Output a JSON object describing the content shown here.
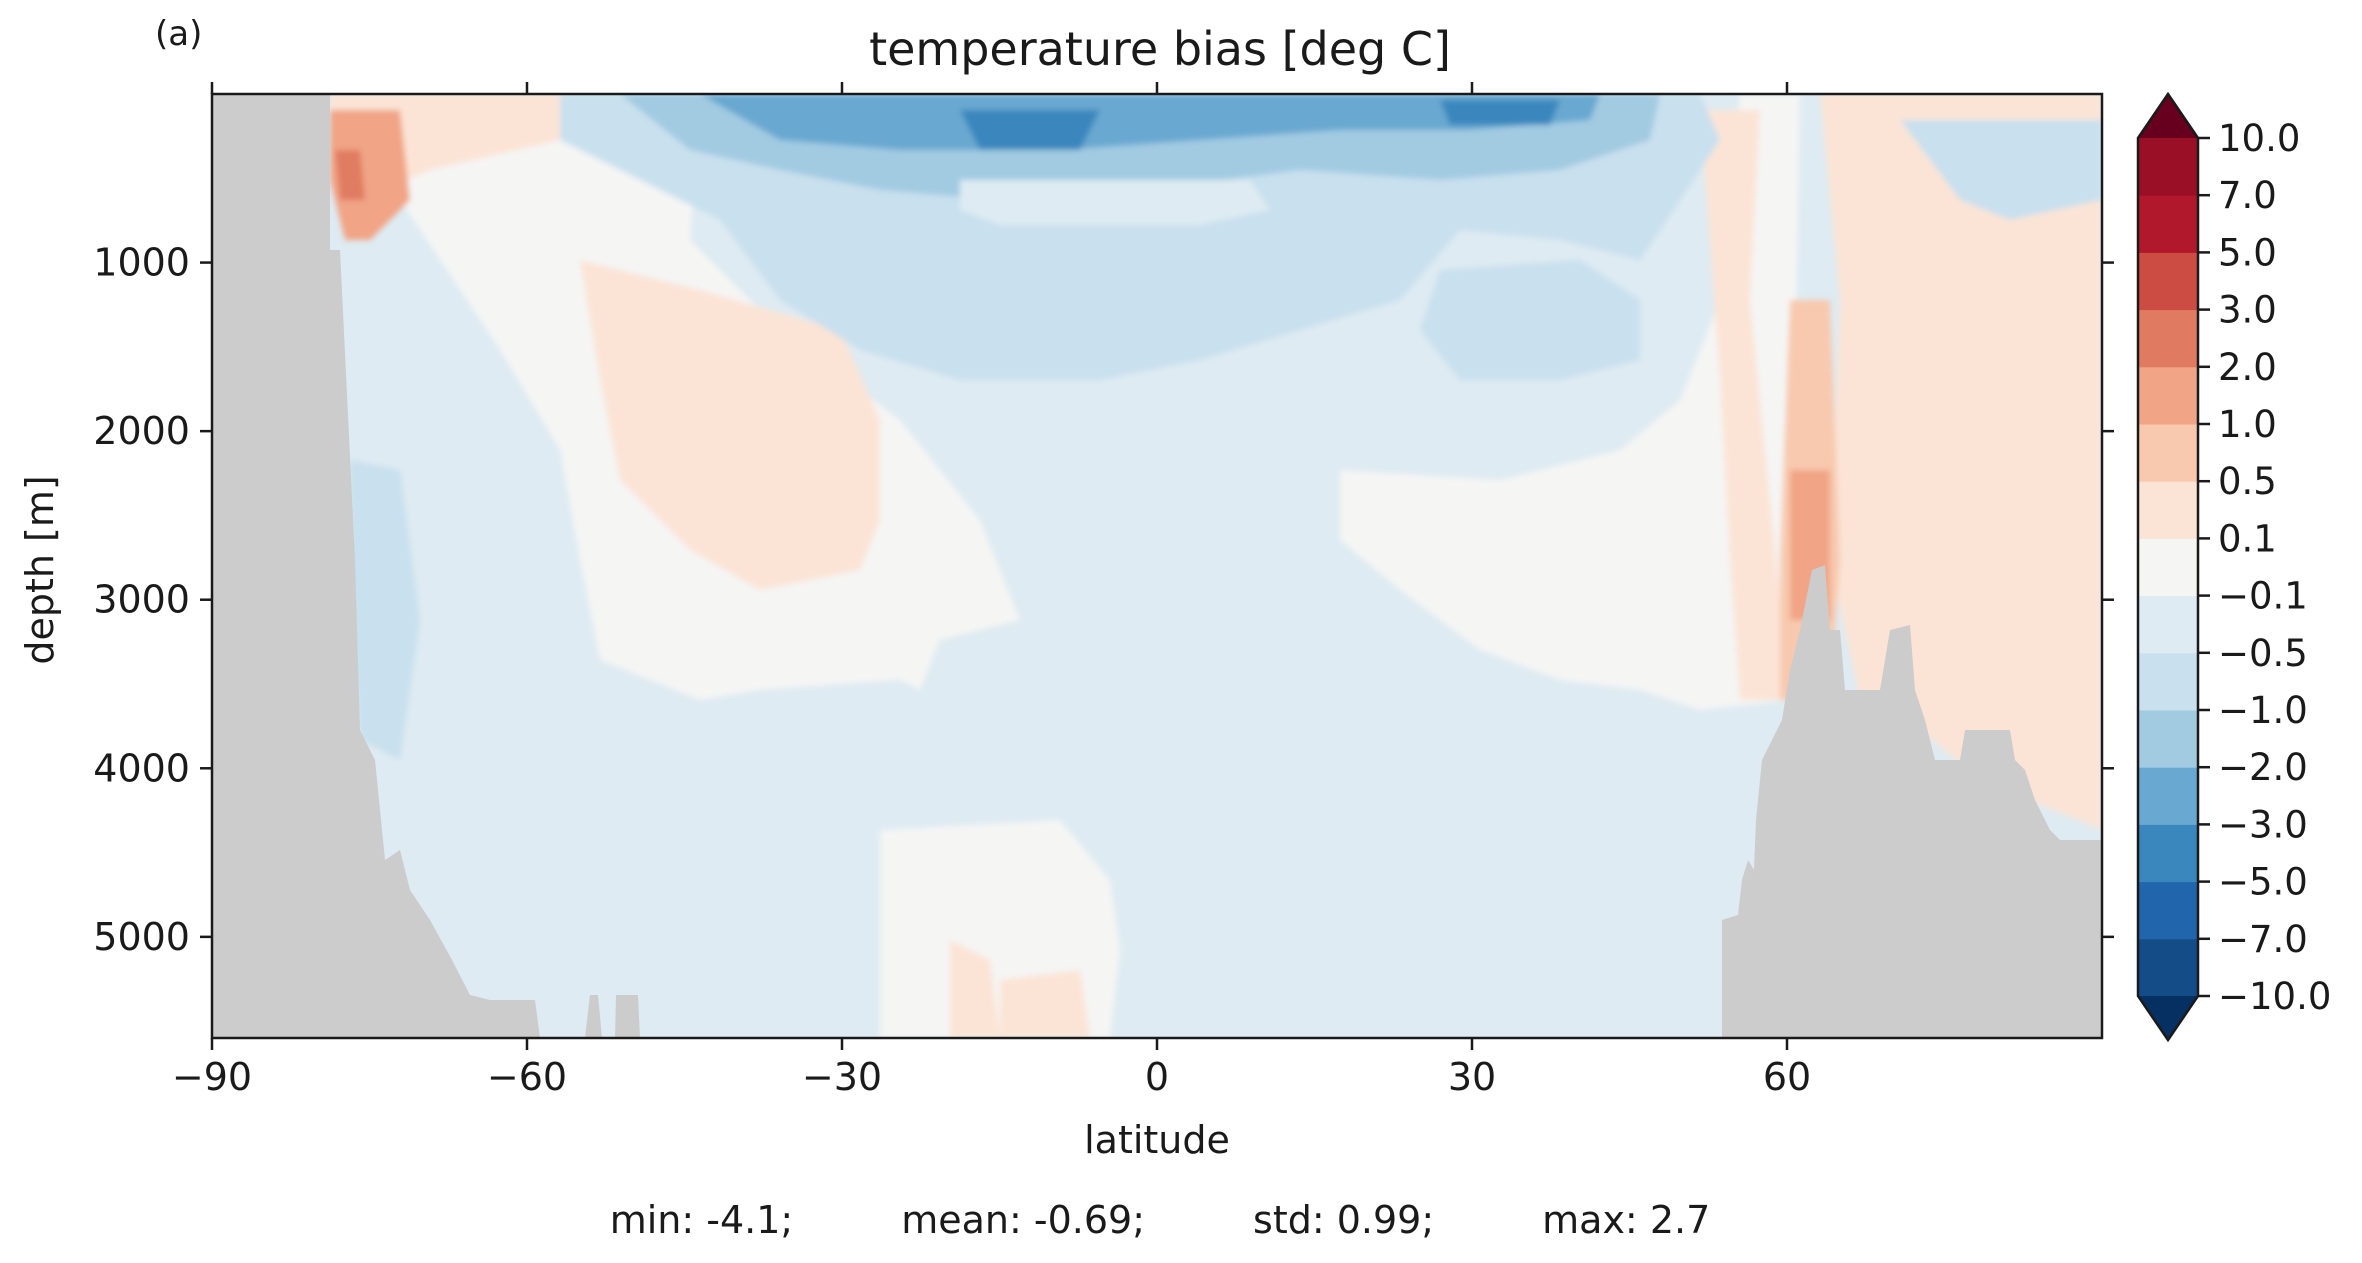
{
  "panel_label": "(a)",
  "chart_data": {
    "type": "heatmap",
    "title": "temperature bias [deg C]",
    "xlabel": "latitude",
    "ylabel": "depth [m]",
    "xlim": [
      -90,
      90
    ],
    "ylim": [
      5600,
      0
    ],
    "x_ticks": [
      -90,
      -60,
      -30,
      0,
      30,
      60
    ],
    "x_tick_labels": [
      "−90",
      "−60",
      "−30",
      "0",
      "30",
      "60"
    ],
    "y_ticks": [
      1000,
      2000,
      3000,
      4000,
      5000
    ],
    "y_tick_labels": [
      "1000",
      "2000",
      "3000",
      "4000",
      "5000"
    ],
    "colorbar": {
      "extend": "both",
      "levels": [
        -10.0,
        -7.0,
        -5.0,
        -3.0,
        -2.0,
        -1.0,
        -0.5,
        -0.1,
        0.1,
        0.5,
        1.0,
        2.0,
        3.0,
        5.0,
        7.0,
        10.0
      ],
      "tick_labels": [
        "−10.0",
        "−7.0",
        "−5.0",
        "−3.0",
        "−2.0",
        "−1.0",
        "−0.5",
        "−0.1",
        "0.1",
        "0.5",
        "1.0",
        "2.0",
        "3.0",
        "5.0",
        "7.0",
        "10.0"
      ],
      "colors": [
        "#053061",
        "#134c87",
        "#2166ac",
        "#3a87bd",
        "#69a8d0",
        "#a2cbe2",
        "#c9e0ee",
        "#deebf2",
        "#f5f5f4",
        "#fbe4d6",
        "#f8c9af",
        "#f1a486",
        "#e07b62",
        "#cc4c44",
        "#b2182b",
        "#9a0f25",
        "#67001f"
      ]
    },
    "land_color": "#cccccc",
    "stats": {
      "min": "min: -4.1;",
      "mean": "mean: -0.69;",
      "std": "std: 0.99;",
      "max": "max: 2.7"
    }
  }
}
